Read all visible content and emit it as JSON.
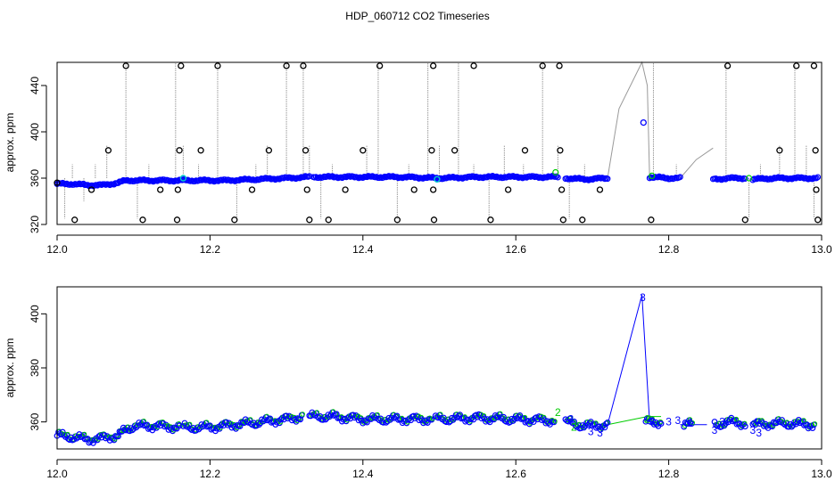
{
  "figure": {
    "title": "HDP_060712  CO2 Timeseries"
  },
  "colors": {
    "blue": "#0000ff",
    "cyan": "#00cccc",
    "green": "#00cc00",
    "gray": "#9a9a9a",
    "black": "#000000"
  },
  "chart_data": [
    {
      "type": "scatter",
      "panel": "top",
      "xlabel": "",
      "ylabel": "approx. ppm",
      "xlim": [
        12.0,
        13.0
      ],
      "ylim": [
        320,
        460
      ],
      "xticks": [
        12.0,
        12.2,
        12.4,
        12.6,
        12.8,
        13.0
      ],
      "xtick_labels": [
        "12.0",
        "12.2",
        "12.4",
        "12.6",
        "12.8",
        "13.0"
      ],
      "yticks": [
        320,
        360,
        400,
        440
      ],
      "ytick_labels": [
        "320",
        "360",
        "400",
        "440"
      ],
      "grid": false,
      "baseline_segments": [
        {
          "x": [
            12.0,
            12.02,
            12.04,
            12.06,
            12.08,
            12.09,
            12.11,
            12.14,
            12.18,
            12.22,
            12.26,
            12.3,
            12.33
          ],
          "y": [
            355,
            355,
            354,
            354,
            356,
            358,
            358,
            358,
            358,
            358,
            359,
            360,
            361
          ]
        },
        {
          "x": [
            12.335,
            12.4,
            12.45,
            12.5,
            12.55,
            12.6,
            12.655
          ],
          "y": [
            361,
            361,
            361,
            360,
            361,
            361,
            361
          ]
        },
        {
          "x": [
            12.665,
            12.69,
            12.72
          ],
          "y": [
            360,
            359,
            360
          ]
        },
        {
          "x": [
            12.775,
            12.8,
            12.815
          ],
          "y": [
            361,
            360,
            360
          ]
        },
        {
          "x": [
            12.858,
            12.88,
            12.9
          ],
          "y": [
            359,
            360,
            360
          ]
        },
        {
          "x": [
            12.91,
            12.94,
            12.97,
            12.995
          ],
          "y": [
            359,
            360,
            360,
            360
          ]
        }
      ],
      "gray_spike_x": [
        12.0,
        12.01,
        12.02,
        12.035,
        12.05,
        12.065,
        12.09,
        12.105,
        12.12,
        12.135,
        12.155,
        12.165,
        12.185,
        12.21,
        12.235,
        12.26,
        12.275,
        12.3,
        12.322,
        12.33,
        12.345,
        12.36,
        12.375,
        12.405,
        12.42,
        12.445,
        12.46,
        12.485,
        12.5,
        12.525,
        12.545,
        12.565,
        12.585,
        12.61,
        12.635,
        12.655,
        12.67,
        12.69,
        12.71,
        12.78,
        12.81,
        12.875,
        12.905,
        12.92,
        12.945,
        12.965,
        12.98,
        12.99
      ],
      "gray_spike_y": [
        388,
        325,
        372,
        340,
        372,
        388,
        460,
        325,
        372,
        360,
        460,
        388,
        372,
        460,
        325,
        372,
        388,
        460,
        460,
        388,
        325,
        372,
        360,
        388,
        460,
        325,
        372,
        460,
        388,
        460,
        372,
        325,
        388,
        372,
        460,
        388,
        325,
        372,
        360,
        460,
        372,
        460,
        325,
        372,
        388,
        460,
        388,
        325
      ],
      "gray_connectors": [
        {
          "x": [
            12.72,
            12.735,
            12.765,
            12.772,
            12.775
          ],
          "y": [
            360,
            420,
            460,
            440,
            361
          ]
        },
        {
          "x": [
            12.815,
            12.836,
            12.858
          ],
          "y": [
            360,
            376,
            386
          ]
        }
      ],
      "black_outliers": [
        {
          "x": 12.0,
          "y": 356
        },
        {
          "x": 12.023,
          "y": 324
        },
        {
          "x": 12.045,
          "y": 350
        },
        {
          "x": 12.067,
          "y": 384
        },
        {
          "x": 12.09,
          "y": 457
        },
        {
          "x": 12.112,
          "y": 324
        },
        {
          "x": 12.135,
          "y": 350
        },
        {
          "x": 12.157,
          "y": 324
        },
        {
          "x": 12.158,
          "y": 350
        },
        {
          "x": 12.16,
          "y": 384
        },
        {
          "x": 12.162,
          "y": 457
        },
        {
          "x": 12.188,
          "y": 384
        },
        {
          "x": 12.21,
          "y": 457
        },
        {
          "x": 12.232,
          "y": 324
        },
        {
          "x": 12.255,
          "y": 350
        },
        {
          "x": 12.277,
          "y": 384
        },
        {
          "x": 12.3,
          "y": 457
        },
        {
          "x": 12.322,
          "y": 457
        },
        {
          "x": 12.325,
          "y": 384
        },
        {
          "x": 12.327,
          "y": 350
        },
        {
          "x": 12.33,
          "y": 324
        },
        {
          "x": 12.355,
          "y": 324
        },
        {
          "x": 12.377,
          "y": 350
        },
        {
          "x": 12.4,
          "y": 384
        },
        {
          "x": 12.422,
          "y": 457
        },
        {
          "x": 12.445,
          "y": 324
        },
        {
          "x": 12.467,
          "y": 350
        },
        {
          "x": 12.49,
          "y": 384
        },
        {
          "x": 12.492,
          "y": 457
        },
        {
          "x": 12.492,
          "y": 350
        },
        {
          "x": 12.493,
          "y": 324
        },
        {
          "x": 12.52,
          "y": 384
        },
        {
          "x": 12.545,
          "y": 457
        },
        {
          "x": 12.567,
          "y": 324
        },
        {
          "x": 12.59,
          "y": 350
        },
        {
          "x": 12.612,
          "y": 384
        },
        {
          "x": 12.635,
          "y": 457
        },
        {
          "x": 12.657,
          "y": 457
        },
        {
          "x": 12.658,
          "y": 384
        },
        {
          "x": 12.66,
          "y": 350
        },
        {
          "x": 12.662,
          "y": 324
        },
        {
          "x": 12.687,
          "y": 324
        },
        {
          "x": 12.71,
          "y": 350
        },
        {
          "x": 12.777,
          "y": 324
        },
        {
          "x": 12.877,
          "y": 457
        },
        {
          "x": 12.9,
          "y": 324
        },
        {
          "x": 12.945,
          "y": 384
        },
        {
          "x": 12.967,
          "y": 457
        },
        {
          "x": 12.99,
          "y": 457
        },
        {
          "x": 12.992,
          "y": 384
        },
        {
          "x": 12.993,
          "y": 350
        },
        {
          "x": 12.995,
          "y": 324
        }
      ],
      "blue_outliers": [
        {
          "x": 12.767,
          "y": 408
        }
      ],
      "cyan_points": [
        {
          "x": 12.165,
          "y": 360
        },
        {
          "x": 12.497,
          "y": 359
        }
      ],
      "green_points": [
        {
          "x": 12.652,
          "y": 365
        },
        {
          "x": 12.778,
          "y": 362
        },
        {
          "x": 12.905,
          "y": 360
        }
      ]
    },
    {
      "type": "scatter",
      "panel": "bottom",
      "xlabel": "",
      "ylabel": "approx. ppm",
      "xlim": [
        12.0,
        13.0
      ],
      "ylim": [
        350,
        410
      ],
      "xticks": [
        12.0,
        12.2,
        12.4,
        12.6,
        12.8,
        13.0
      ],
      "xtick_labels": [
        "12.0",
        "12.2",
        "12.4",
        "12.6",
        "12.8",
        "13.0"
      ],
      "yticks": [
        360,
        380,
        400
      ],
      "ytick_labels": [
        "360",
        "380",
        "400"
      ],
      "grid": false,
      "baseline_segments": [
        {
          "x": [
            12.0,
            12.02,
            12.04,
            12.06,
            12.08,
            12.09,
            12.1,
            12.13,
            12.16
          ],
          "y": [
            355,
            354.5,
            353.5,
            354,
            355,
            357,
            358.5,
            358.5,
            358
          ]
        },
        {
          "x": [
            12.165,
            12.2,
            12.25,
            12.3,
            12.32
          ],
          "y": [
            358,
            358,
            359.5,
            361,
            362
          ]
        },
        {
          "x": [
            12.33,
            12.36,
            12.4,
            12.45,
            12.49
          ],
          "y": [
            362,
            362,
            361,
            361,
            361
          ]
        },
        {
          "x": [
            12.495,
            12.55,
            12.6,
            12.65
          ],
          "y": [
            361,
            361.5,
            361,
            360.5
          ]
        },
        {
          "x": [
            12.665,
            12.68,
            12.7,
            12.72
          ],
          "y": [
            360,
            359,
            358.5,
            359
          ]
        },
        {
          "x": [
            12.77,
            12.79
          ],
          "y": [
            360,
            360
          ]
        },
        {
          "x": [
            12.82,
            12.83
          ],
          "y": [
            359,
            359
          ]
        },
        {
          "x": [
            12.86,
            12.88,
            12.9
          ],
          "y": [
            359,
            360,
            359.5
          ]
        },
        {
          "x": [
            12.91,
            12.95,
            12.99
          ],
          "y": [
            359,
            359.5,
            359
          ]
        }
      ],
      "blue_line": {
        "x": [
          12.72,
          12.765,
          12.775
        ],
        "y": [
          359,
          407,
          360
        ]
      },
      "blue_line2": {
        "x": [
          12.815,
          12.85
        ],
        "y": [
          359,
          359
        ]
      },
      "green_line": {
        "x": [
          12.72,
          12.772,
          12.79
        ],
        "y": [
          359,
          362,
          362
        ]
      },
      "label_points": [
        {
          "t": "3",
          "c": "blue",
          "x": 12.766,
          "y": 406
        },
        {
          "t": "2",
          "c": "green",
          "x": 12.655,
          "y": 363.5
        },
        {
          "t": "3",
          "c": "blue",
          "x": 12.672,
          "y": 361
        },
        {
          "t": "2",
          "c": "green",
          "x": 12.676,
          "y": 358
        },
        {
          "t": "3",
          "c": "blue",
          "x": 12.698,
          "y": 356.5
        },
        {
          "t": "3",
          "c": "blue",
          "x": 12.71,
          "y": 356
        },
        {
          "t": "2",
          "c": "green",
          "x": 12.772,
          "y": 361
        },
        {
          "t": "3",
          "c": "blue",
          "x": 12.778,
          "y": 360
        },
        {
          "t": "3",
          "c": "blue",
          "x": 12.8,
          "y": 360
        },
        {
          "t": "3",
          "c": "blue",
          "x": 12.812,
          "y": 360.5
        },
        {
          "t": "3",
          "c": "blue",
          "x": 12.828,
          "y": 359.5
        },
        {
          "t": "3",
          "c": "blue",
          "x": 12.86,
          "y": 357
        },
        {
          "t": "3",
          "c": "blue",
          "x": 12.87,
          "y": 360
        },
        {
          "t": "3",
          "c": "blue",
          "x": 12.91,
          "y": 357
        },
        {
          "t": "3",
          "c": "blue",
          "x": 12.918,
          "y": 356
        }
      ]
    }
  ]
}
